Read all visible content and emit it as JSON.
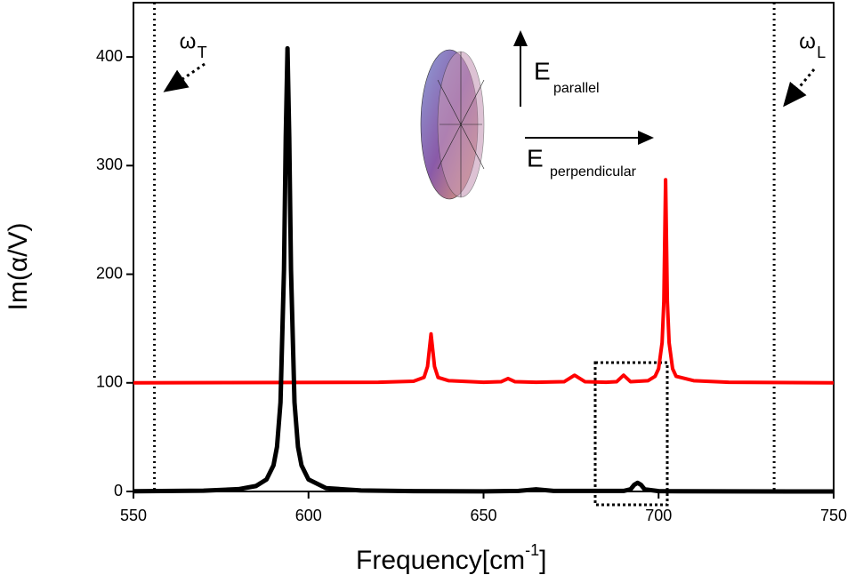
{
  "chart_data": {
    "type": "line",
    "y_label": "Im(α/V)",
    "x_label": {
      "text": "Frequency[cm",
      "sup": "-1",
      "end": "]"
    },
    "xlim": [
      550,
      750
    ],
    "xticks": [
      550,
      600,
      650,
      700,
      750
    ],
    "ylim": [
      0,
      450
    ],
    "yticks": [
      0,
      100,
      200,
      300,
      400
    ],
    "series": [
      {
        "color": "#000000",
        "x": [
          550,
          570,
          580,
          585,
          588,
          590,
          591,
          592,
          593,
          593.5,
          594,
          594.5,
          595,
          596,
          597,
          598,
          600,
          605,
          615,
          630,
          650,
          660,
          665,
          670,
          690,
          692,
          693,
          694,
          695,
          696,
          700,
          720,
          750
        ],
        "values": [
          0.2,
          0.7,
          2.1,
          5,
          11,
          24,
          41,
          82,
          204,
          326,
          408,
          326,
          204,
          82,
          41,
          24,
          11,
          3.1,
          0.9,
          0.3,
          0.1,
          0.5,
          2,
          0.5,
          0.5,
          2,
          6,
          8,
          6,
          2,
          0.3,
          0.1,
          0
        ]
      },
      {
        "color": "#ff0000",
        "x": [
          550,
          620,
          630,
          633,
          634,
          635,
          636,
          637,
          640,
          650,
          655,
          657,
          659,
          665,
          673,
          676,
          679,
          685,
          688,
          690,
          692,
          697,
          699,
          700,
          701,
          701.5,
          702,
          702.5,
          703,
          704,
          705,
          710,
          720,
          750
        ],
        "values": [
          100,
          100.5,
          101.5,
          105,
          115,
          145,
          115,
          105,
          102,
          100.5,
          101,
          104,
          101,
          100.5,
          101,
          107,
          101,
          100.5,
          101,
          107,
          101,
          102,
          106,
          113,
          137,
          175,
          287,
          175,
          137,
          113,
          106,
          102,
          100.5,
          100
        ]
      }
    ],
    "markers": [
      {
        "symbol": "ω",
        "sub": "T",
        "x": 556
      },
      {
        "symbol": "ω",
        "sub": "L",
        "x": 733
      }
    ],
    "annotations": [
      {
        "text": "E",
        "sub": "parallel"
      },
      {
        "text": "E",
        "sub": "perpendicular"
      }
    ]
  }
}
